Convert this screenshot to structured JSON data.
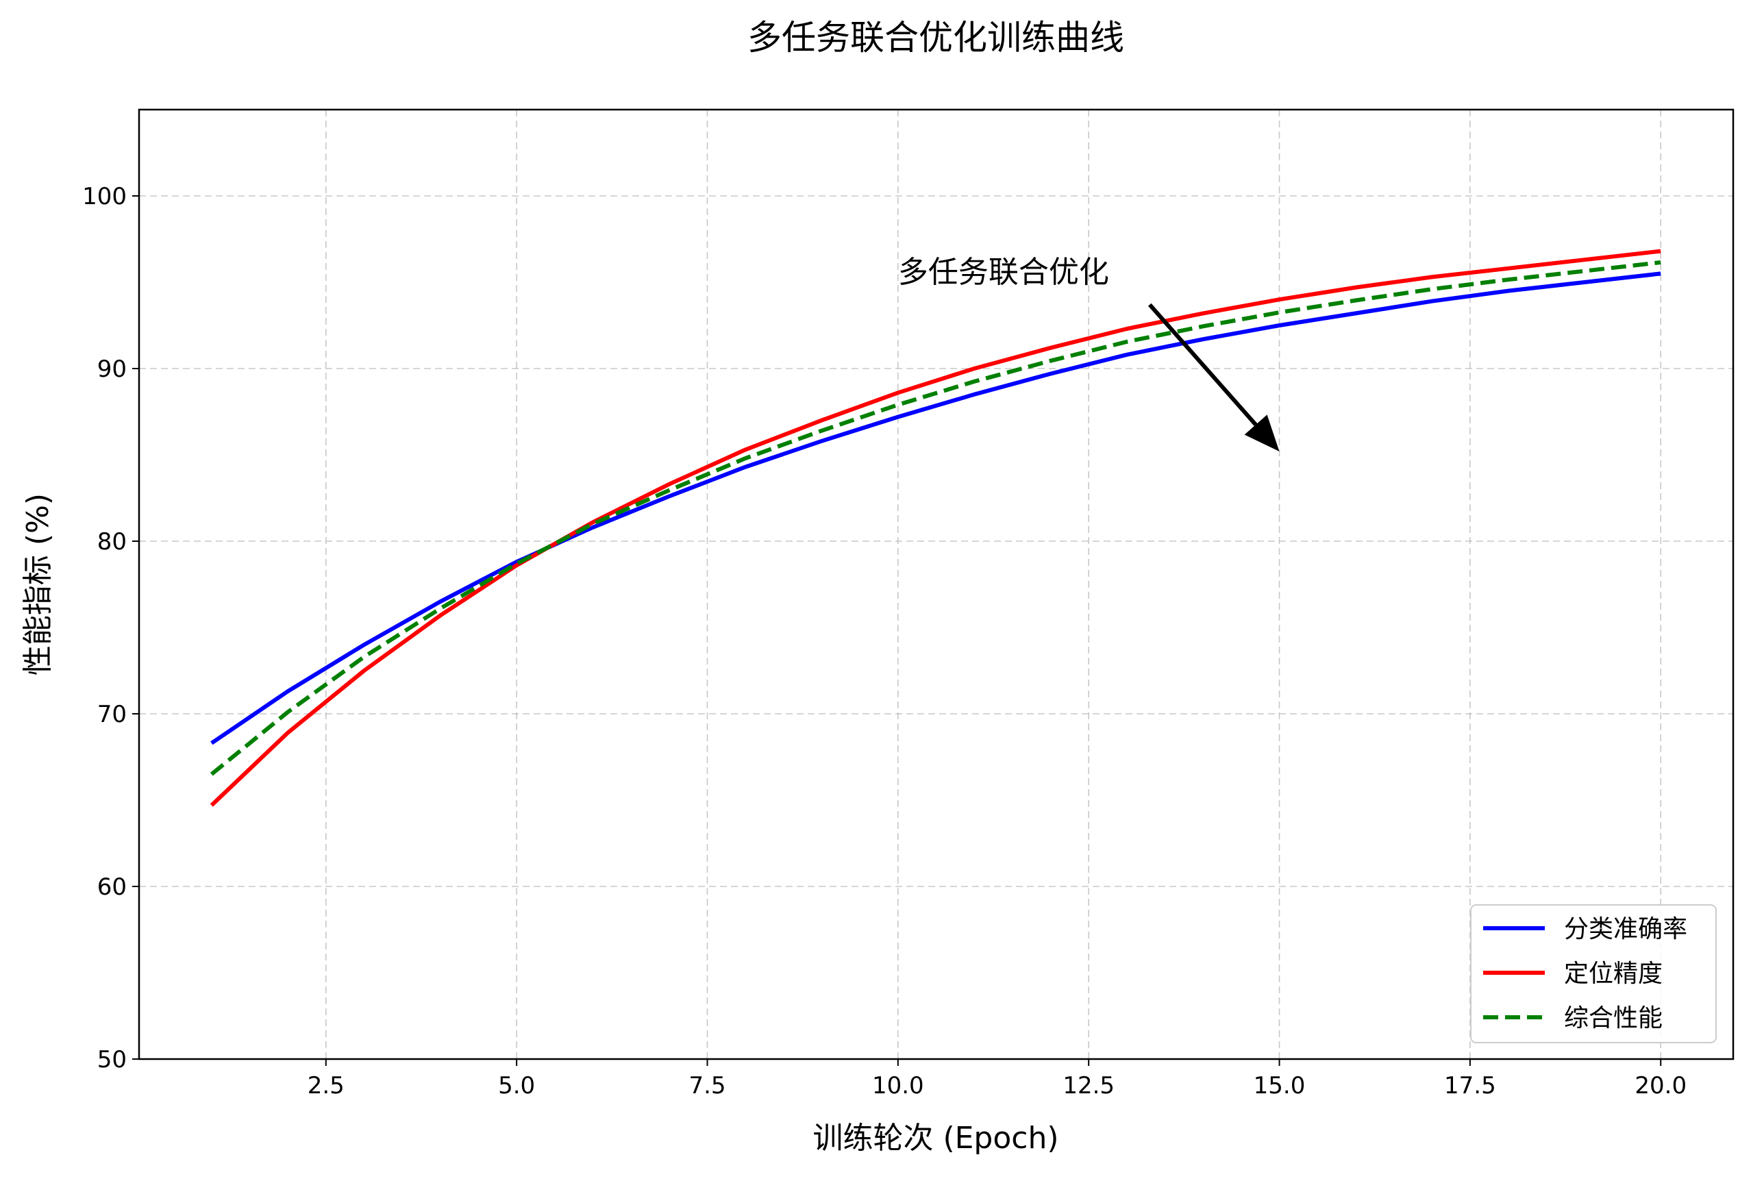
{
  "chart_data": {
    "type": "line",
    "title": "多任务联合优化训练曲线",
    "xlabel": "训练轮次 (Epoch)",
    "ylabel": "性能指标 (%)",
    "xlim": [
      0.05,
      20.95
    ],
    "ylim": [
      50,
      105
    ],
    "grid": true,
    "legend_position": "lower-right",
    "x_ticks": [
      2.5,
      5.0,
      7.5,
      10.0,
      12.5,
      15.0,
      17.5,
      20.0
    ],
    "x_tick_labels": [
      "2.5",
      "5.0",
      "7.5",
      "10.0",
      "12.5",
      "15.0",
      "17.5",
      "20.0"
    ],
    "y_ticks": [
      50,
      60,
      70,
      80,
      90,
      100
    ],
    "y_tick_labels": [
      "50",
      "60",
      "70",
      "80",
      "90",
      "100"
    ],
    "x": [
      1,
      2,
      3,
      4,
      5,
      6,
      7,
      8,
      9,
      10,
      11,
      12,
      13,
      14,
      15,
      16,
      17,
      18,
      19,
      20
    ],
    "series": [
      {
        "name": "分类准确率",
        "color": "#0000ff",
        "style": "solid",
        "values": [
          68.3,
          71.3,
          74.0,
          76.5,
          78.8,
          80.8,
          82.6,
          84.3,
          85.8,
          87.2,
          88.5,
          89.7,
          90.8,
          91.7,
          92.5,
          93.2,
          93.9,
          94.5,
          95.0,
          95.5
        ]
      },
      {
        "name": "定位精度",
        "color": "#ff0000",
        "style": "solid",
        "values": [
          64.7,
          68.9,
          72.5,
          75.7,
          78.6,
          81.1,
          83.3,
          85.3,
          87.0,
          88.6,
          90.0,
          91.2,
          92.3,
          93.2,
          94.0,
          94.7,
          95.3,
          95.8,
          96.3,
          96.8
        ]
      },
      {
        "name": "综合性能",
        "color": "#008000",
        "style": "dashed",
        "values": [
          66.5,
          70.1,
          73.3,
          76.1,
          78.7,
          81.0,
          82.95,
          84.8,
          86.4,
          87.9,
          89.25,
          90.45,
          91.55,
          92.45,
          93.25,
          93.95,
          94.6,
          95.15,
          95.65,
          96.15
        ]
      }
    ],
    "annotation": {
      "text": "多任务联合优化",
      "text_xy": [
        10.0,
        95.0
      ],
      "arrow_from": [
        13.3,
        93.7
      ],
      "arrow_to": [
        15.0,
        85.2
      ]
    }
  }
}
